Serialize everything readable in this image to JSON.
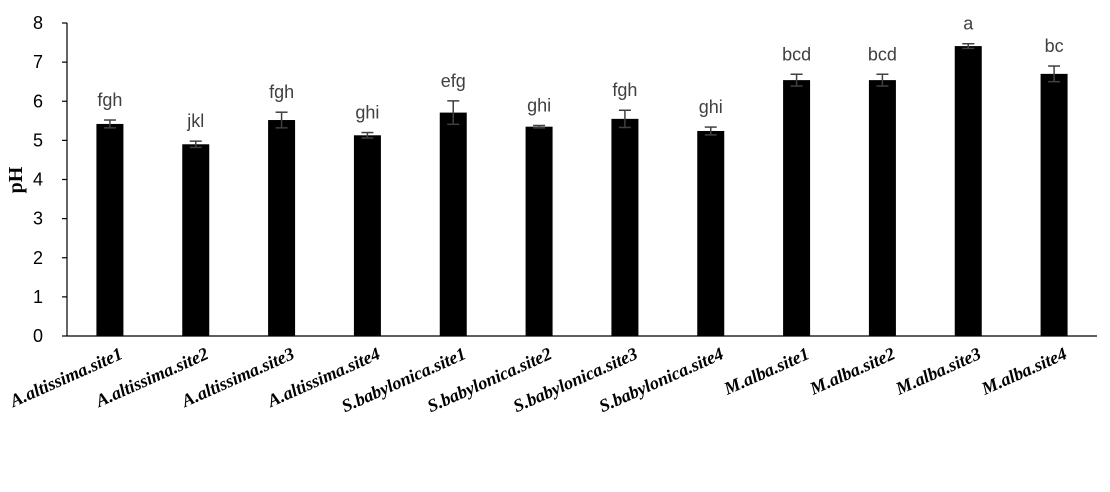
{
  "chart_data": {
    "type": "bar",
    "title": "",
    "xlabel": "",
    "ylabel": "pH",
    "ylim": [
      0,
      8
    ],
    "yticks": [
      0,
      1,
      2,
      3,
      4,
      5,
      6,
      7,
      8
    ],
    "grid": false,
    "legend": "none",
    "bar_color": "#000000",
    "categories": [
      "A.altissima.site1",
      "A.altissima.site2",
      "A.altissima.site3",
      "A.altissima.site4",
      "S.babylonica.site1",
      "S.babylonica.site2",
      "S.babylonica.site3",
      "S.babylonica.site4",
      "M.alba.site1",
      "M.alba.site2",
      "M.alba.site3",
      "M.alba.site4"
    ],
    "values": [
      5.42,
      4.9,
      5.52,
      5.13,
      5.71,
      5.35,
      5.55,
      5.24,
      6.54,
      6.54,
      7.41,
      6.7
    ],
    "errors": [
      0.1,
      0.08,
      0.2,
      0.07,
      0.3,
      0.03,
      0.22,
      0.1,
      0.15,
      0.15,
      0.06,
      0.2
    ],
    "significance_labels": [
      "fgh",
      "jkl",
      "fgh",
      "ghi",
      "efg",
      "ghi",
      "fgh",
      "ghi",
      "bcd",
      "bcd",
      "a",
      "bc"
    ]
  }
}
